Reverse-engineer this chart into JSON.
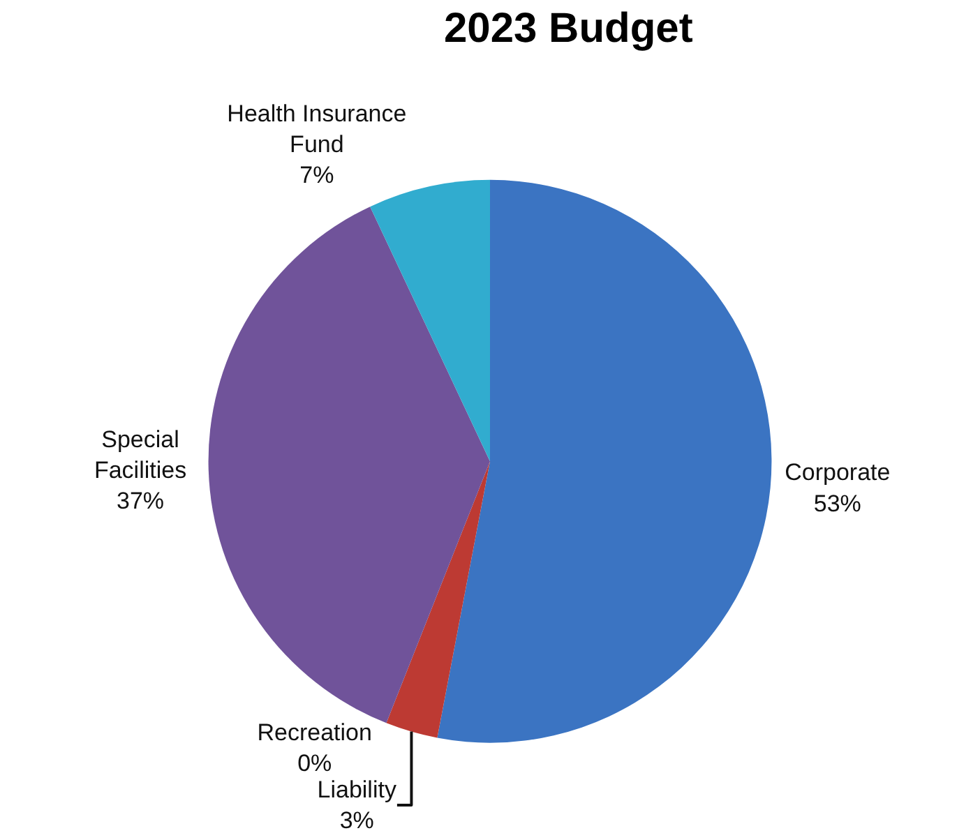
{
  "chart_data": {
    "type": "pie",
    "title": "2023 Budget",
    "categories": [
      "Corporate",
      "Liability",
      "Recreation",
      "Special Facilities",
      "Health Insurance Fund"
    ],
    "values": [
      53,
      3,
      0,
      37,
      7
    ],
    "value_labels": [
      "53%",
      "3%",
      "0%",
      "37%",
      "7%"
    ],
    "colors": [
      "#3b74c2",
      "#bd3a33",
      "#8db543",
      "#70539a",
      "#31accf"
    ],
    "legend": false
  }
}
